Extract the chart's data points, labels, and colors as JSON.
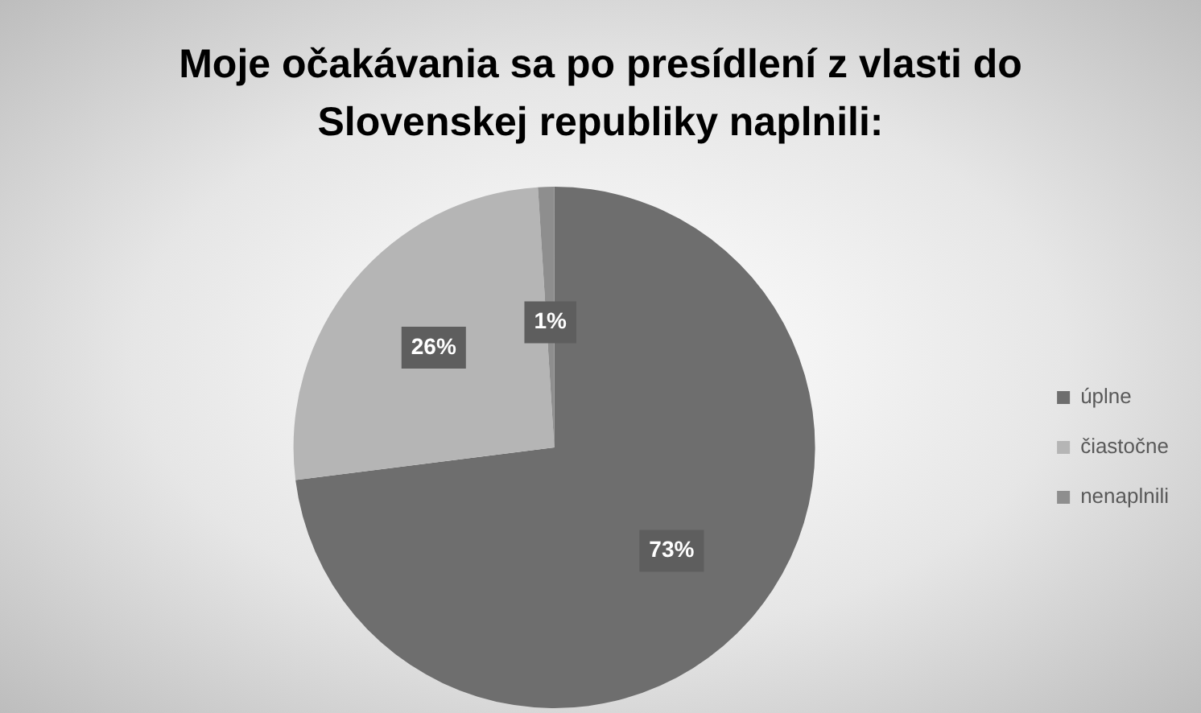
{
  "chart_data": {
    "type": "pie",
    "title": "Moje očakávania sa po presídlení z vlasti do Slovenskej republiky naplnili:",
    "categories": [
      "úplne",
      "čiastočne",
      "nenaplnili"
    ],
    "values": [
      73,
      26,
      1
    ],
    "colors": [
      "#6e6e6e",
      "#b5b5b5",
      "#8e8e8e"
    ],
    "value_labels": [
      "73%",
      "26%",
      "1%"
    ],
    "legend": "right"
  }
}
